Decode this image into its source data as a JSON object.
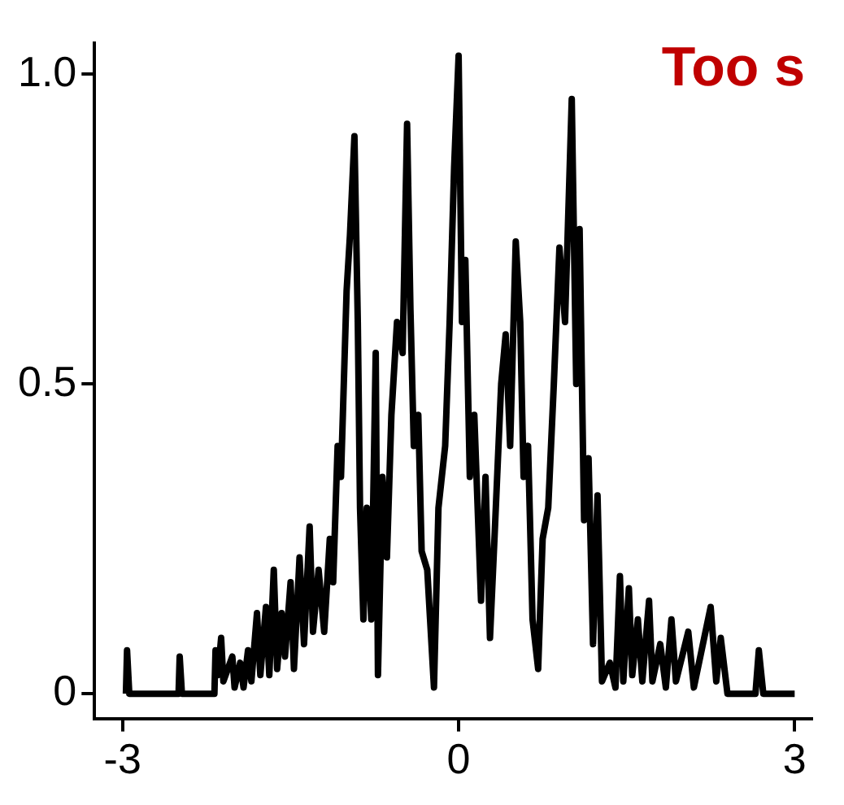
{
  "chart_data": {
    "type": "line",
    "annotations": [
      "Too s"
    ],
    "xlim": [
      -3.25,
      3.15
    ],
    "ylim": [
      -0.04,
      1.05
    ],
    "xticks": [
      -3,
      0,
      3
    ],
    "yticks": [
      0.0,
      {
        "value": 0.5,
        "label": "0.5"
      },
      {
        "value": 1.0,
        "label": "1.0"
      }
    ],
    "grid": false,
    "legend": false,
    "marker": "none",
    "line_style": "solid",
    "series": [
      {
        "color": "#000000",
        "x": [
          -2.97,
          -2.96,
          -2.94,
          -2.5,
          -2.49,
          -2.47,
          -2.18,
          -2.17,
          -2.15,
          -2.12,
          -2.1,
          -2.02,
          -2.0,
          -1.95,
          -1.92,
          -1.88,
          -1.85,
          -1.8,
          -1.77,
          -1.72,
          -1.69,
          -1.65,
          -1.62,
          -1.58,
          -1.55,
          -1.5,
          -1.47,
          -1.42,
          -1.38,
          -1.33,
          -1.3,
          -1.25,
          -1.2,
          -1.15,
          -1.12,
          -1.08,
          -1.05,
          -1.0,
          -0.97,
          -0.93,
          -0.9,
          -0.88,
          -0.85,
          -0.82,
          -0.78,
          -0.74,
          -0.72,
          -0.68,
          -0.64,
          -0.6,
          -0.55,
          -0.5,
          -0.46,
          -0.43,
          -0.4,
          -0.36,
          -0.33,
          -0.28,
          -0.22,
          -0.18,
          -0.12,
          -0.08,
          -0.04,
          0.0,
          0.03,
          0.06,
          0.1,
          0.14,
          0.2,
          0.24,
          0.28,
          0.32,
          0.38,
          0.42,
          0.46,
          0.51,
          0.55,
          0.58,
          0.62,
          0.66,
          0.71,
          0.75,
          0.8,
          0.85,
          0.9,
          0.95,
          1.01,
          1.05,
          1.08,
          1.12,
          1.16,
          1.2,
          1.24,
          1.28,
          1.35,
          1.4,
          1.44,
          1.47,
          1.52,
          1.55,
          1.6,
          1.64,
          1.7,
          1.73,
          1.8,
          1.85,
          1.9,
          1.94,
          2.05,
          2.1,
          2.25,
          2.3,
          2.34,
          2.4,
          2.65,
          2.68,
          2.72,
          3.0
        ],
        "values": [
          0,
          0.07,
          0,
          0,
          0.06,
          0,
          0,
          0.07,
          0.03,
          0.09,
          0.02,
          0.06,
          0.01,
          0.05,
          0.01,
          0.07,
          0.02,
          0.13,
          0.03,
          0.14,
          0.03,
          0.2,
          0.04,
          0.13,
          0.06,
          0.18,
          0.04,
          0.22,
          0.08,
          0.27,
          0.1,
          0.2,
          0.1,
          0.25,
          0.18,
          0.4,
          0.35,
          0.65,
          0.74,
          0.9,
          0.6,
          0.3,
          0.12,
          0.3,
          0.12,
          0.55,
          0.03,
          0.35,
          0.22,
          0.45,
          0.6,
          0.55,
          0.92,
          0.62,
          0.4,
          0.45,
          0.23,
          0.2,
          0.01,
          0.3,
          0.4,
          0.6,
          0.85,
          1.03,
          0.6,
          0.7,
          0.35,
          0.45,
          0.15,
          0.35,
          0.09,
          0.25,
          0.5,
          0.58,
          0.4,
          0.73,
          0.6,
          0.35,
          0.4,
          0.12,
          0.04,
          0.25,
          0.3,
          0.5,
          0.72,
          0.6,
          0.96,
          0.5,
          0.75,
          0.28,
          0.38,
          0.08,
          0.32,
          0.02,
          0.05,
          0.01,
          0.19,
          0.02,
          0.17,
          0.03,
          0.12,
          0.02,
          0.15,
          0.02,
          0.08,
          0.01,
          0.12,
          0.02,
          0.1,
          0.01,
          0.14,
          0.02,
          0.09,
          0,
          0,
          0.07,
          0,
          0
        ]
      }
    ]
  }
}
